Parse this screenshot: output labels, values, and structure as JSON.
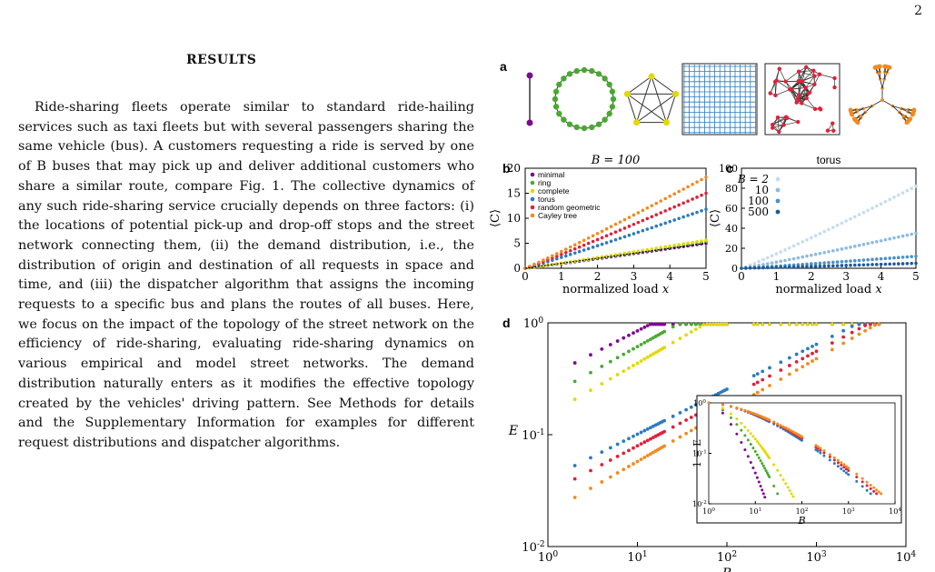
{
  "page": {
    "number": "2"
  },
  "section": {
    "title": "RESULTS"
  },
  "paragraph": {
    "text": "Ride-sharing fleets operate similar to standard ride-hailing services such as taxi fleets but with several passengers sharing the same vehicle (bus). A customers requesting a ride is served by one of B buses that may pick up and deliver additional customers who share a similar route, compare Fig. 1. The collective dynamics of any such ride-sharing service crucially depends on three factors: (i) the locations of potential pick-up and drop-off stops and the street network connecting them, (ii) the demand distribution, i.e., the distribution of origin and destination of all requests in space and time, and (iii) the dispatcher algorithm that assigns the incoming requests to a specific bus and plans the routes of all buses. Here, we focus on the impact of the topology of the street network on the efficiency of ride-sharing, evaluating ride-sharing dynamics on various empirical and model street networks. The demand distribution naturally enters as it modifies the effective topology created by the vehicles' driving pattern. See Methods for details and the Supplementary Information for examples for different request distributions and dispatcher algorithms."
  },
  "figure": {
    "panel_labels": {
      "a": "a",
      "b": "b",
      "c": "c",
      "d": "d"
    },
    "networks": [
      "minimal",
      "ring",
      "complete",
      "torus",
      "random geometric",
      "Cayley tree"
    ],
    "colors": {
      "minimal": "#7b0a8f",
      "ring": "#4aa832",
      "complete": "#e3d800",
      "torus": "#2b7bbf",
      "random geometric": "#e0203a",
      "Cayley tree": "#f28a1e",
      "torus_B2": "#c6dcef",
      "torus_B10": "#8dbbe0",
      "torus_B100": "#4a90cd",
      "torus_B500": "#1c5a9c"
    }
  },
  "chart_data": [
    {
      "panel": "b",
      "type": "scatter",
      "title": "B = 100",
      "xlabel": "normalized load x",
      "ylabel": "⟨C⟩",
      "xlim": [
        0,
        5
      ],
      "ylim": [
        0,
        20
      ],
      "xticks": [
        "0",
        "1",
        "2",
        "3",
        "4",
        "5"
      ],
      "yticks": [
        "0",
        "5",
        "10",
        "15",
        "20"
      ],
      "legend_position": "top-left",
      "series": [
        {
          "name": "minimal",
          "slope": 1.0,
          "x_end": 5,
          "y_end": 5.0
        },
        {
          "name": "ring",
          "slope": 1.05,
          "x_end": 5,
          "y_end": 5.3
        },
        {
          "name": "complete",
          "slope": 1.1,
          "x_end": 5,
          "y_end": 5.6
        },
        {
          "name": "torus",
          "slope": 2.4,
          "x_end": 5,
          "y_end": 11.8
        },
        {
          "name": "random geometric",
          "slope": 3.0,
          "x_end": 5,
          "y_end": 15.0
        },
        {
          "name": "Cayley tree",
          "slope": 3.6,
          "x_end": 5,
          "y_end": 18.2
        }
      ]
    },
    {
      "panel": "c",
      "type": "scatter",
      "title": "torus",
      "xlabel": "normalized load x",
      "ylabel": "⟨C⟩",
      "xlim": [
        0,
        5
      ],
      "ylim": [
        0,
        100
      ],
      "xticks": [
        "0",
        "1",
        "2",
        "3",
        "4",
        "5"
      ],
      "yticks": [
        "0",
        "20",
        "40",
        "60",
        "80",
        "100"
      ],
      "legend_position": "top-left",
      "legend_title": "B = 2",
      "series": [
        {
          "name": "2",
          "y_end": 82
        },
        {
          "name": "10",
          "y_end": 35
        },
        {
          "name": "100",
          "y_end": 12
        },
        {
          "name": "500",
          "y_end": 5
        }
      ]
    },
    {
      "panel": "d",
      "type": "scatter",
      "xlabel": "B",
      "ylabel": "E",
      "xscale": "log",
      "yscale": "log",
      "xlim": [
        1,
        10000
      ],
      "ylim": [
        0.01,
        1
      ],
      "xticks": [
        "10^0",
        "10^1",
        "10^2",
        "10^3",
        "10^4"
      ],
      "yticks": [
        "10^-2",
        "10^-1",
        "10^0"
      ],
      "reference_line": {
        "y": 1,
        "style": "dotted"
      },
      "series": [
        {
          "name": "minimal",
          "y_at_B1": 0.33,
          "saturates_at_B": 15
        },
        {
          "name": "ring",
          "y_at_B1": 0.22,
          "saturates_at_B": 30
        },
        {
          "name": "complete",
          "y_at_B1": 0.15,
          "saturates_at_B": 60
        },
        {
          "name": "torus",
          "y_at_B1": 0.04,
          "saturates_at_B": 3000
        },
        {
          "name": "random geometric",
          "y_at_B1": 0.03,
          "saturates_at_B": 4000
        },
        {
          "name": "Cayley tree",
          "y_at_B1": 0.02,
          "saturates_at_B": 5000
        }
      ],
      "inset": {
        "xlabel": "B",
        "ylabel": "1 − E",
        "xscale": "log",
        "yscale": "log",
        "xlim": [
          1,
          10000
        ],
        "ylim": [
          0.01,
          1
        ],
        "xticks": [
          "10^0",
          "10^1",
          "10^2",
          "10^3",
          "10^4"
        ],
        "yticks": [
          "10^-2",
          "10^-1",
          "10^0"
        ]
      }
    }
  ]
}
